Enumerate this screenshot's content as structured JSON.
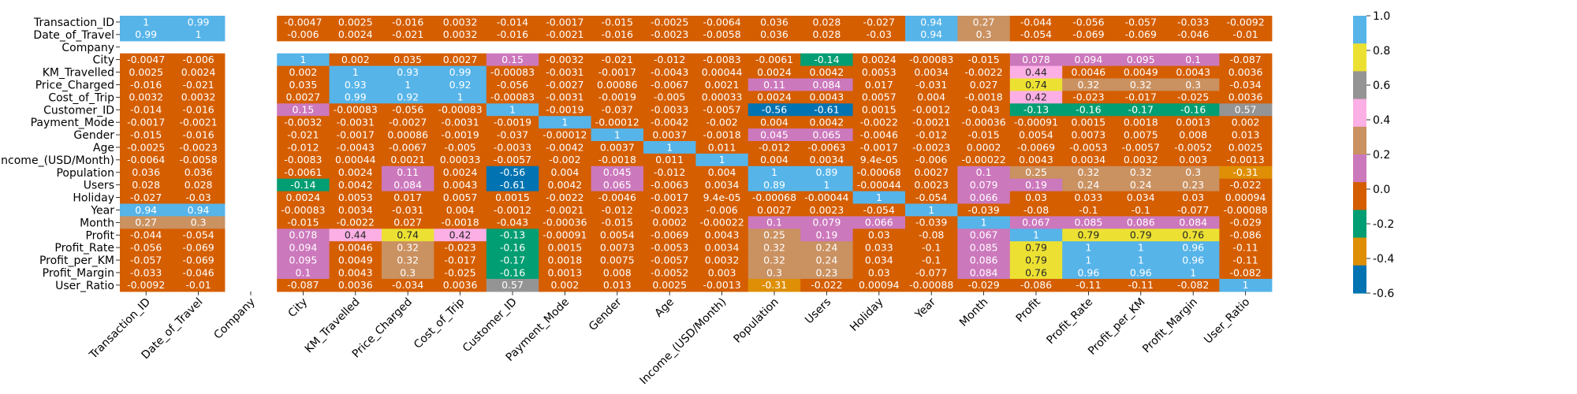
{
  "chart_data": {
    "type": "heatmap",
    "title": "",
    "xlabel": "",
    "ylabel": "",
    "labels": [
      "Transaction_ID",
      "Date_of_Travel",
      "Company",
      "City",
      "KM_Travelled",
      "Price_Charged",
      "Cost_of_Trip",
      "Customer_ID",
      "Payment_Mode",
      "Gender",
      "Age",
      "Income_(USD/Month)",
      "Population",
      "Users",
      "Holiday",
      "Year",
      "Month",
      "Profit",
      "Profit_Rate",
      "Profit_per_KM",
      "Profit_Margin",
      "User_Ratio"
    ],
    "values": [
      [
        "1",
        "0.99",
        "",
        "-0.0047",
        "0.0025",
        "-0.016",
        "0.0032",
        "-0.014",
        "-0.0017",
        "-0.015",
        "-0.0025",
        "-0.0064",
        "0.036",
        "0.028",
        "-0.027",
        "0.94",
        "0.27",
        "-0.044",
        "-0.056",
        "-0.057",
        "-0.033",
        "-0.0092"
      ],
      [
        "0.99",
        "1",
        "",
        "-0.006",
        "0.0024",
        "-0.021",
        "0.0032",
        "-0.016",
        "-0.0021",
        "-0.016",
        "-0.0023",
        "-0.0058",
        "0.036",
        "0.028",
        "-0.03",
        "0.94",
        "0.3",
        "-0.054",
        "-0.069",
        "-0.069",
        "-0.046",
        "-0.01"
      ],
      [
        "",
        "",
        "",
        "",
        "",
        "",
        "",
        "",
        "",
        "",
        "",
        "",
        "",
        "",
        "",
        "",
        "",
        "",
        "",
        "",
        "",
        ""
      ],
      [
        "-0.0047",
        "-0.006",
        "",
        "1",
        "0.002",
        "0.035",
        "0.0027",
        "0.15",
        "-0.0032",
        "-0.021",
        "-0.012",
        "-0.0083",
        "-0.0061",
        "-0.14",
        "0.0024",
        "-0.00083",
        "-0.015",
        "0.078",
        "0.094",
        "0.095",
        "0.1",
        "-0.087"
      ],
      [
        "0.0025",
        "0.0024",
        "",
        "0.002",
        "1",
        "0.93",
        "0.99",
        "-0.00083",
        "-0.0031",
        "-0.0017",
        "-0.0043",
        "0.00044",
        "0.0024",
        "0.0042",
        "0.0053",
        "0.0034",
        "-0.0022",
        "0.44",
        "0.0046",
        "0.0049",
        "0.0043",
        "0.0036"
      ],
      [
        "-0.016",
        "-0.021",
        "",
        "0.035",
        "0.93",
        "1",
        "0.92",
        "-0.056",
        "-0.0027",
        "0.00086",
        "-0.0067",
        "0.0021",
        "0.11",
        "0.084",
        "0.017",
        "-0.031",
        "0.027",
        "0.74",
        "0.32",
        "0.32",
        "0.3",
        "-0.034"
      ],
      [
        "0.0032",
        "0.0032",
        "",
        "0.0027",
        "0.99",
        "0.92",
        "1",
        "-0.00083",
        "-0.0031",
        "-0.0019",
        "-0.005",
        "0.00033",
        "0.0024",
        "0.0043",
        "0.0057",
        "0.004",
        "-0.0018",
        "0.42",
        "-0.023",
        "-0.017",
        "-0.025",
        "0.0036"
      ],
      [
        "-0.014",
        "-0.016",
        "",
        "0.15",
        "-0.00083",
        "-0.056",
        "-0.00083",
        "1",
        "-0.0019",
        "-0.037",
        "-0.0033",
        "-0.0057",
        "-0.56",
        "-0.61",
        "0.0015",
        "-0.0012",
        "-0.043",
        "-0.13",
        "-0.16",
        "-0.17",
        "-0.16",
        "0.57"
      ],
      [
        "-0.0017",
        "-0.0021",
        "",
        "-0.0032",
        "-0.0031",
        "-0.0027",
        "-0.0031",
        "-0.0019",
        "1",
        "-0.00012",
        "-0.0042",
        "-0.002",
        "0.004",
        "0.0042",
        "-0.0022",
        "-0.0021",
        "-0.00036",
        "-0.00091",
        "0.0015",
        "0.0018",
        "0.0013",
        "0.002"
      ],
      [
        "-0.015",
        "-0.016",
        "",
        "-0.021",
        "-0.0017",
        "0.00086",
        "-0.0019",
        "-0.037",
        "-0.00012",
        "1",
        "0.0037",
        "-0.0018",
        "0.045",
        "0.065",
        "-0.0046",
        "-0.012",
        "-0.015",
        "0.0054",
        "0.0073",
        "0.0075",
        "0.008",
        "0.013"
      ],
      [
        "-0.0025",
        "-0.0023",
        "",
        "-0.012",
        "-0.0043",
        "-0.0067",
        "-0.005",
        "-0.0033",
        "-0.0042",
        "0.0037",
        "1",
        "0.011",
        "-0.012",
        "-0.0063",
        "-0.0017",
        "-0.0023",
        "0.0002",
        "-0.0069",
        "-0.0053",
        "-0.0057",
        "-0.0052",
        "0.0025"
      ],
      [
        "-0.0064",
        "-0.0058",
        "",
        "-0.0083",
        "0.00044",
        "0.0021",
        "0.00033",
        "-0.0057",
        "-0.002",
        "-0.0018",
        "0.011",
        "1",
        "0.004",
        "0.0034",
        "9.4e-05",
        "-0.006",
        "-0.00022",
        "0.0043",
        "0.0034",
        "0.0032",
        "0.003",
        "-0.0013"
      ],
      [
        "0.036",
        "0.036",
        "",
        "-0.0061",
        "0.0024",
        "0.11",
        "0.0024",
        "-0.56",
        "0.004",
        "0.045",
        "-0.012",
        "0.004",
        "1",
        "0.89",
        "-0.00068",
        "0.0027",
        "0.1",
        "0.25",
        "0.32",
        "0.32",
        "0.3",
        "-0.31"
      ],
      [
        "0.028",
        "0.028",
        "",
        "-0.14",
        "0.0042",
        "0.084",
        "0.0043",
        "-0.61",
        "0.0042",
        "0.065",
        "-0.0063",
        "0.0034",
        "0.89",
        "1",
        "-0.00044",
        "0.0023",
        "0.079",
        "0.19",
        "0.24",
        "0.24",
        "0.23",
        "-0.022"
      ],
      [
        "-0.027",
        "-0.03",
        "",
        "0.0024",
        "0.0053",
        "0.017",
        "0.0057",
        "0.0015",
        "-0.0022",
        "-0.0046",
        "-0.0017",
        "9.4e-05",
        "-0.00068",
        "-0.00044",
        "1",
        "-0.054",
        "0.066",
        "0.03",
        "0.033",
        "0.034",
        "0.03",
        "0.00094"
      ],
      [
        "0.94",
        "0.94",
        "",
        "-0.00083",
        "0.0034",
        "-0.031",
        "0.004",
        "-0.0012",
        "-0.0021",
        "-0.012",
        "-0.0023",
        "-0.006",
        "0.0027",
        "0.0023",
        "-0.054",
        "1",
        "-0.039",
        "-0.08",
        "-0.1",
        "-0.1",
        "-0.077",
        "-0.00088"
      ],
      [
        "0.27",
        "0.3",
        "",
        "-0.015",
        "-0.0022",
        "0.027",
        "-0.0018",
        "-0.043",
        "-0.00036",
        "-0.015",
        "0.0002",
        "-0.00022",
        "0.1",
        "0.079",
        "0.066",
        "-0.039",
        "1",
        "0.067",
        "0.085",
        "0.086",
        "0.084",
        "-0.029"
      ],
      [
        "-0.044",
        "-0.054",
        "",
        "0.078",
        "0.44",
        "0.74",
        "0.42",
        "-0.13",
        "-0.00091",
        "0.0054",
        "-0.0069",
        "0.0043",
        "0.25",
        "0.19",
        "0.03",
        "-0.08",
        "0.067",
        "1",
        "0.79",
        "0.79",
        "0.76",
        "-0.086"
      ],
      [
        "-0.056",
        "-0.069",
        "",
        "0.094",
        "0.0046",
        "0.32",
        "-0.023",
        "-0.16",
        "0.0015",
        "0.0073",
        "-0.0053",
        "0.0034",
        "0.32",
        "0.24",
        "0.033",
        "-0.1",
        "0.085",
        "0.79",
        "1",
        "1",
        "0.96",
        "-0.11"
      ],
      [
        "-0.057",
        "-0.069",
        "",
        "0.095",
        "0.0049",
        "0.32",
        "-0.017",
        "-0.17",
        "0.0018",
        "0.0075",
        "-0.0057",
        "0.0032",
        "0.32",
        "0.24",
        "0.034",
        "-0.1",
        "0.086",
        "0.79",
        "1",
        "1",
        "0.96",
        "-0.11"
      ],
      [
        "-0.033",
        "-0.046",
        "",
        "0.1",
        "0.0043",
        "0.3",
        "-0.025",
        "-0.16",
        "0.0013",
        "0.008",
        "-0.0052",
        "0.003",
        "0.3",
        "0.23",
        "0.03",
        "-0.077",
        "0.084",
        "0.76",
        "0.96",
        "0.96",
        "1",
        "-0.082"
      ],
      [
        "-0.0092",
        "-0.01",
        "",
        "-0.087",
        "0.0036",
        "-0.034",
        "0.0036",
        "0.57",
        "0.002",
        "0.013",
        "0.0025",
        "-0.0013",
        "-0.31",
        "-0.022",
        "0.00094",
        "-0.00088",
        "-0.029",
        "-0.086",
        "-0.11",
        "-0.11",
        "-0.082",
        "1"
      ]
    ],
    "colorbar": {
      "ticks": [
        "1.0",
        "0.8",
        "0.6",
        "0.4",
        "0.2",
        "0.0",
        "-0.2",
        "-0.4",
        "-0.6"
      ],
      "range": [
        -0.6,
        1.0
      ],
      "colors": [
        "#0173b2",
        "#de8f05",
        "#029e73",
        "#d55e00",
        "#cc78bc",
        "#ca9161",
        "#fbafe4",
        "#949494",
        "#ece133",
        "#56b4e9"
      ]
    }
  }
}
